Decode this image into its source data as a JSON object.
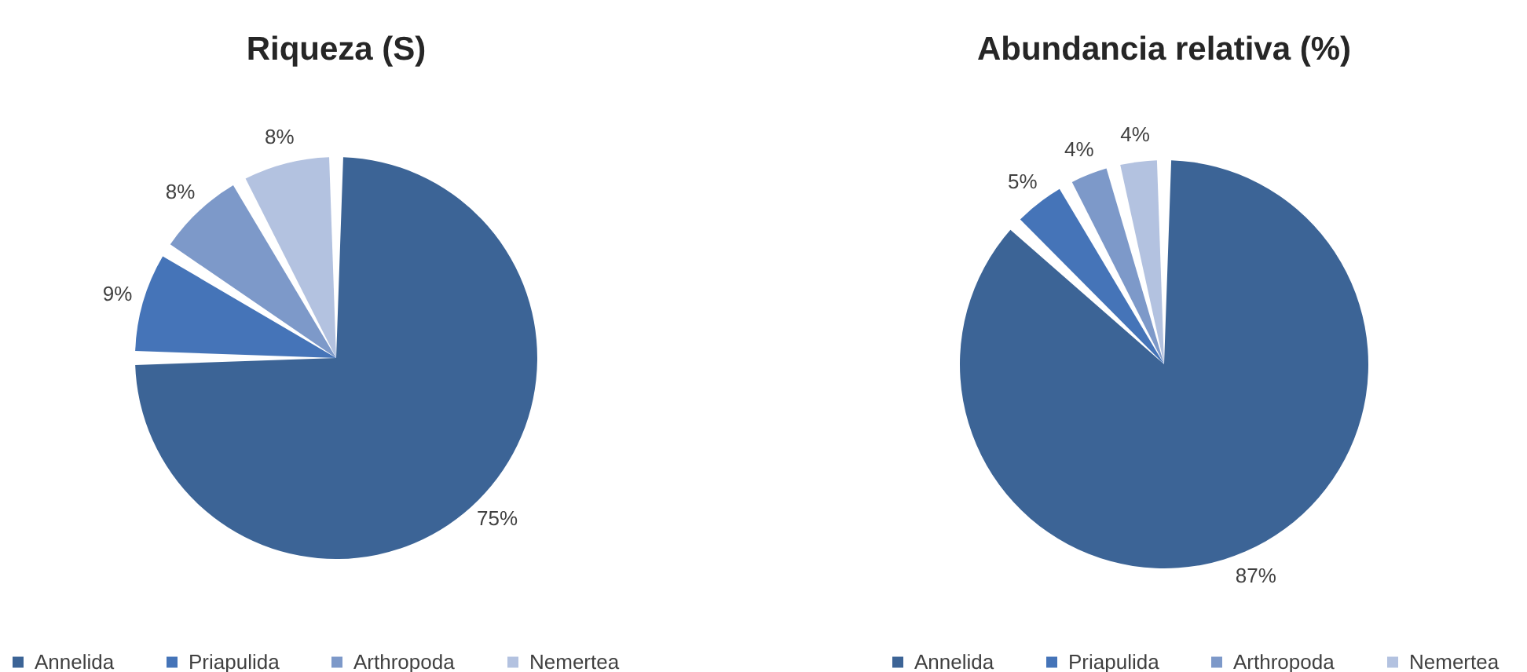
{
  "chart_data": [
    {
      "type": "pie",
      "title": "Riqueza (S)",
      "categories": [
        "Annelida",
        "Priapulida",
        "Arthropoda",
        "Nemertea"
      ],
      "values": [
        75,
        9,
        8,
        8
      ],
      "colors": [
        "#3c6496",
        "#4574b8",
        "#7d99c9",
        "#b3c2e0"
      ],
      "value_labels": [
        "75%",
        "9%",
        "8%",
        "8%"
      ],
      "legend": "bottom"
    },
    {
      "type": "pie",
      "title": "Abundancia relativa (%)",
      "categories": [
        "Annelida",
        "Priapulida",
        "Arthropoda",
        "Nemertea"
      ],
      "values": [
        87,
        5,
        4,
        4
      ],
      "colors": [
        "#3c6496",
        "#4574b8",
        "#7d99c9",
        "#b3c2e0"
      ],
      "value_labels": [
        "87%",
        "5%",
        "4%",
        "4%"
      ],
      "legend": "bottom"
    }
  ]
}
